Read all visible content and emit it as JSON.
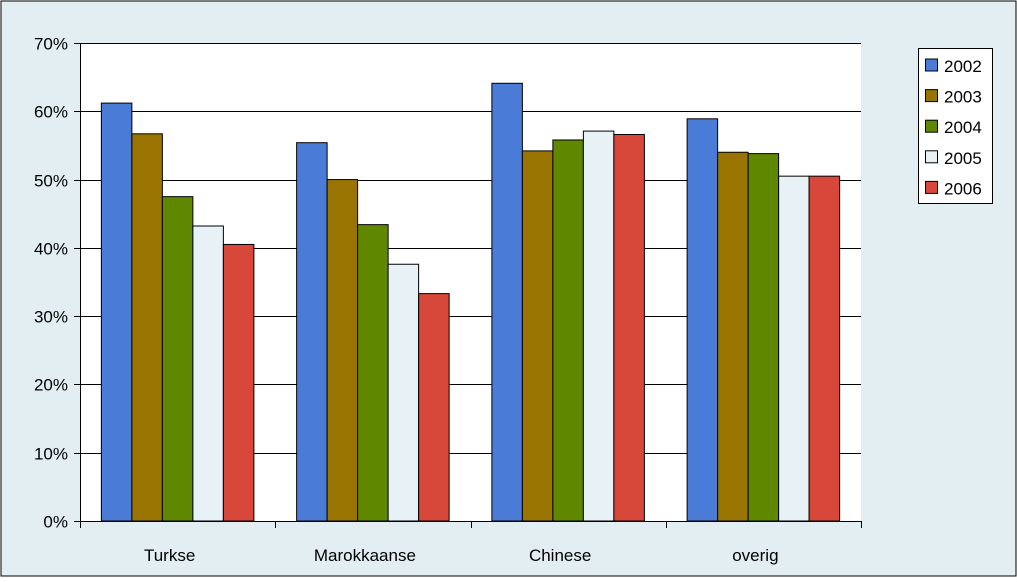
{
  "chart_data": {
    "type": "bar",
    "categories": [
      "Turkse",
      "Marokkaanse",
      "Chinese",
      "overig"
    ],
    "series": [
      {
        "name": "2002",
        "color": "#4a7bd6",
        "values": [
          61.2,
          55.4,
          64.1,
          58.9
        ]
      },
      {
        "name": "2003",
        "color": "#9a7400",
        "values": [
          56.7,
          50.0,
          54.2,
          54.0
        ]
      },
      {
        "name": "2004",
        "color": "#5f8700",
        "values": [
          47.5,
          43.4,
          55.8,
          53.8
        ]
      },
      {
        "name": "2005",
        "color": "#e8f1f5",
        "values": [
          43.2,
          37.6,
          57.1,
          50.5
        ]
      },
      {
        "name": "2006",
        "color": "#d8483a",
        "values": [
          40.5,
          33.3,
          56.6,
          50.5
        ]
      }
    ],
    "ylim": [
      0,
      70
    ],
    "yticks": [
      0,
      10,
      20,
      30,
      40,
      50,
      60,
      70
    ],
    "ytick_labels": [
      "0%",
      "10%",
      "20%",
      "30%",
      "40%",
      "50%",
      "60%",
      "70%"
    ],
    "grid": true,
    "legend": "right",
    "title": "",
    "xlabel": "",
    "ylabel": "",
    "plot_background": "#ffffff",
    "chart_background": "#e3eef3"
  }
}
